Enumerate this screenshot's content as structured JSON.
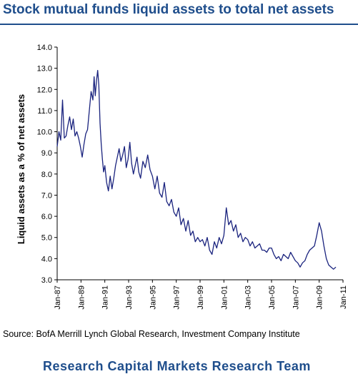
{
  "page": {
    "title": "Stock mutual funds liquid assets to total net assets",
    "source": "Source: BofA Merrill Lynch Global Research, Investment Company Institute",
    "footer": "Research Capital Markets Research Team"
  },
  "colors": {
    "title": "#1f4e8c",
    "line": "#1a237e",
    "axis": "#000000"
  },
  "chart_data": {
    "type": "line",
    "title": "Stock mutual funds liquid assets to total net assets",
    "ylabel": "Liquid assets as a % of net assets",
    "xlabel": "",
    "ylim": [
      3.0,
      14.0
    ],
    "xlim": [
      1987.0,
      2011.0
    ],
    "grid": false,
    "legend": "none",
    "y_ticks": [
      3.0,
      4.0,
      5.0,
      6.0,
      7.0,
      8.0,
      9.0,
      10.0,
      11.0,
      12.0,
      13.0,
      14.0
    ],
    "y_tick_labels": [
      "3.0",
      "4.0",
      "5.0",
      "6.0",
      "7.0",
      "8.0",
      "9.0",
      "10.0",
      "11.0",
      "12.0",
      "13.0",
      "14.0"
    ],
    "x_ticks": [
      1987,
      1989,
      1991,
      1993,
      1995,
      1997,
      1999,
      2001,
      2003,
      2005,
      2007,
      2009,
      2011
    ],
    "x_tick_labels": [
      "Jan-87",
      "Jan-89",
      "Jan-91",
      "Jan-93",
      "Jan-95",
      "Jan-97",
      "Jan-99",
      "Jan-01",
      "Jan-03",
      "Jan-05",
      "Jan-07",
      "Jan-09",
      "Jan-11"
    ],
    "series": [
      {
        "x": [
          1987.0,
          1987.15,
          1987.3,
          1987.45,
          1987.6,
          1987.75,
          1987.9,
          1988.05,
          1988.2,
          1988.35,
          1988.5,
          1988.65,
          1988.8,
          1988.95,
          1989.1,
          1989.25,
          1989.4,
          1989.55,
          1989.7,
          1989.85,
          1990.0,
          1990.1,
          1990.2,
          1990.3,
          1990.4,
          1990.5,
          1990.6,
          1990.7,
          1990.8,
          1990.9,
          1991.0,
          1991.15,
          1991.3,
          1991.45,
          1991.6,
          1991.75,
          1991.9,
          1992.05,
          1992.2,
          1992.35,
          1992.5,
          1992.65,
          1992.8,
          1992.95,
          1993.1,
          1993.25,
          1993.4,
          1993.55,
          1993.7,
          1993.85,
          1994.0,
          1994.2,
          1994.4,
          1994.6,
          1994.8,
          1995.0,
          1995.2,
          1995.4,
          1995.6,
          1995.8,
          1996.0,
          1996.2,
          1996.4,
          1996.6,
          1996.8,
          1997.0,
          1997.2,
          1997.4,
          1997.6,
          1997.8,
          1998.0,
          1998.2,
          1998.4,
          1998.6,
          1998.8,
          1999.0,
          1999.2,
          1999.4,
          1999.6,
          1999.8,
          2000.0,
          2000.2,
          2000.4,
          2000.6,
          2000.8,
          2001.0,
          2001.2,
          2001.4,
          2001.6,
          2001.8,
          2002.0,
          2002.2,
          2002.4,
          2002.6,
          2002.8,
          2003.0,
          2003.2,
          2003.4,
          2003.6,
          2003.8,
          2004.0,
          2004.2,
          2004.4,
          2004.6,
          2004.8,
          2005.0,
          2005.2,
          2005.4,
          2005.6,
          2005.8,
          2006.0,
          2006.2,
          2006.4,
          2006.6,
          2006.8,
          2007.0,
          2007.2,
          2007.4,
          2007.6,
          2007.8,
          2008.0,
          2008.2,
          2008.4,
          2008.6,
          2008.8,
          2009.0,
          2009.2,
          2009.4,
          2009.6,
          2009.8,
          2010.0,
          2010.2,
          2010.4
        ],
        "y": [
          9.3,
          10.0,
          9.6,
          11.5,
          9.7,
          9.8,
          10.3,
          10.7,
          10.1,
          10.6,
          9.8,
          10.0,
          9.7,
          9.3,
          8.8,
          9.4,
          9.9,
          10.1,
          11.0,
          11.9,
          11.5,
          12.6,
          11.7,
          12.4,
          12.9,
          12.2,
          10.4,
          9.4,
          8.7,
          8.1,
          8.4,
          7.6,
          7.2,
          7.9,
          7.3,
          7.8,
          8.4,
          8.8,
          9.2,
          8.6,
          8.9,
          9.3,
          8.3,
          8.7,
          9.5,
          8.5,
          8.0,
          8.4,
          8.8,
          8.1,
          7.8,
          8.6,
          8.3,
          8.9,
          8.2,
          7.9,
          7.3,
          7.9,
          7.1,
          6.9,
          7.6,
          6.7,
          6.5,
          6.8,
          6.2,
          6.0,
          6.4,
          5.6,
          5.9,
          5.3,
          5.8,
          5.1,
          5.3,
          4.8,
          5.0,
          4.8,
          4.9,
          4.6,
          5.0,
          4.4,
          4.2,
          4.8,
          4.5,
          5.0,
          4.7,
          5.1,
          6.4,
          5.6,
          5.8,
          5.3,
          5.6,
          5.0,
          5.2,
          4.8,
          5.0,
          4.9,
          4.6,
          4.8,
          4.5,
          4.6,
          4.7,
          4.4,
          4.4,
          4.3,
          4.5,
          4.5,
          4.2,
          4.0,
          4.1,
          3.9,
          4.2,
          4.1,
          4.0,
          4.3,
          4.1,
          3.9,
          3.8,
          3.6,
          3.8,
          3.9,
          4.2,
          4.4,
          4.5,
          4.6,
          5.1,
          5.7,
          5.3,
          4.6,
          4.0,
          3.7,
          3.6,
          3.5,
          3.6
        ]
      }
    ]
  }
}
